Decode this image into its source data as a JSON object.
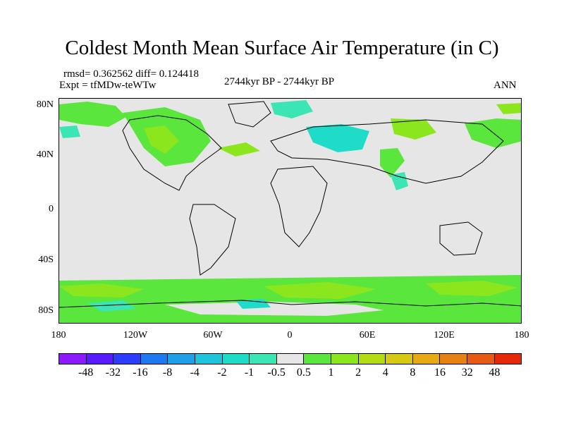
{
  "title": "Coldest Month Mean Surface Air Temperature (in C)",
  "stats": {
    "rmsd_diff": "rmsd= 0.362562  diff= 0.124418",
    "expt": "Expt = tfMDw-teWTw"
  },
  "period": "2744kyr BP - 2744kyr BP",
  "season": "ANN",
  "y_ticks": [
    "80N",
    "40N",
    "0",
    "40S",
    "80S"
  ],
  "x_ticks": [
    "180",
    "120W",
    "60W",
    "0",
    "60E",
    "120E",
    "180"
  ],
  "colorbar": {
    "colors": [
      "#8c1aff",
      "#5a1aff",
      "#2d3cff",
      "#1e78f0",
      "#1ea0e6",
      "#1ec3dc",
      "#1edcc8",
      "#3ce6b4",
      "#e6e6e6",
      "#5ae63c",
      "#8ce61e",
      "#b4dc14",
      "#d7c814",
      "#e6aa14",
      "#e68214",
      "#e65a14",
      "#e6280a"
    ],
    "labels": [
      "-48",
      "-32",
      "-16",
      "-8",
      "-4",
      "-2",
      "-1",
      "-0.5",
      "0.5",
      "1",
      "2",
      "4",
      "8",
      "16",
      "32",
      "48"
    ]
  },
  "legend_colors": {
    "neutral": "#e6e6e6",
    "slight_warm": "#5ae63c",
    "warm": "#8ce61e",
    "slight_cool": "#3ce6b4",
    "cool": "#1edcc8"
  }
}
